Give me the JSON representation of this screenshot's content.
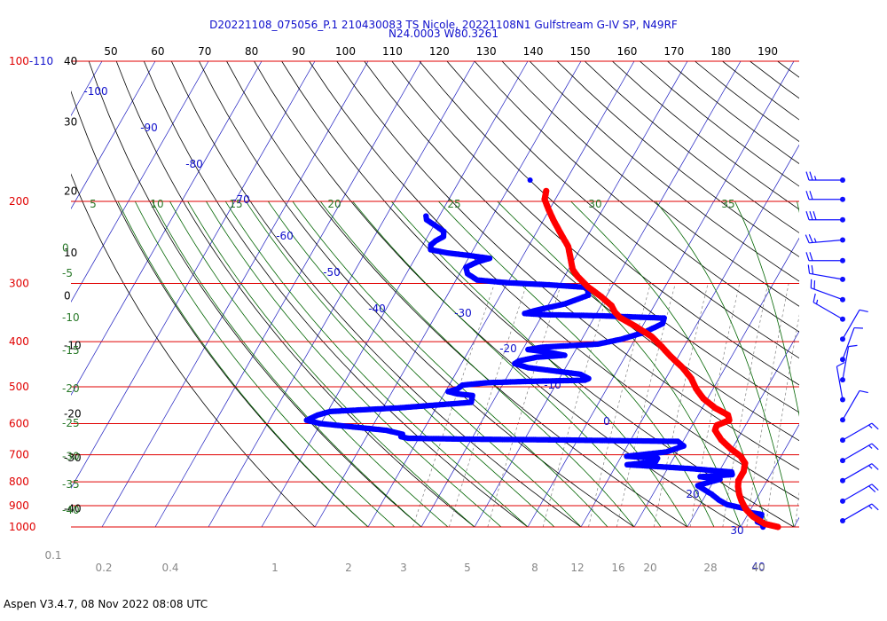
{
  "header": {
    "title_line1": "D20221108_075056_P.1 210430083 TS Nicole, 20221108N1 Gulfstream G-IV SP, N49RF",
    "title_line2": "N24.0003 W80.3261"
  },
  "footer": {
    "text": "Aspen V3.4.7, 08 Nov 2022  08:08 UTC"
  },
  "colors": {
    "pressure_lines": "#e00000",
    "isotherms": "#2020c0",
    "dry_adiabats": "#000000",
    "moist_adiabats": "#006400",
    "mixing_ratio": "#808080",
    "temperature": "#ff0000",
    "dewpoint": "#0000ff",
    "wind": "#1010ff"
  },
  "chart_data": {
    "type": "scatter",
    "subtype": "skew-T log-P sounding",
    "pressure_levels": [
      {
        "value": 100,
        "label": "100-110"
      },
      {
        "value": 200,
        "label": "200"
      },
      {
        "value": 300,
        "label": "300"
      },
      {
        "value": 400,
        "label": "400"
      },
      {
        "value": 500,
        "label": "500"
      },
      {
        "value": 600,
        "label": "600"
      },
      {
        "value": 700,
        "label": "700"
      },
      {
        "value": 800,
        "label": "800"
      },
      {
        "value": 900,
        "label": "900"
      },
      {
        "value": 1000,
        "label": "1000"
      }
    ],
    "top_axis_labels": [
      "50",
      "60",
      "70",
      "80",
      "90",
      "100",
      "110",
      "120",
      "130",
      "140",
      "150",
      "160",
      "170",
      "180",
      "190"
    ],
    "left_height_labels": [
      {
        "label": "40",
        "pressure": 100
      },
      {
        "label": "30",
        "pressure": 135
      },
      {
        "label": "20",
        "pressure": 190
      },
      {
        "label": "10",
        "pressure": 258
      },
      {
        "label": "0",
        "pressure": 319
      },
      {
        "label": "-10",
        "pressure": 408
      },
      {
        "label": "-20",
        "pressure": 572
      },
      {
        "label": "-30",
        "pressure": 710
      },
      {
        "label": "-40",
        "pressure": 915
      }
    ],
    "green_labels": [
      {
        "label": "0",
        "pressure": 252
      },
      {
        "label": "-5",
        "pressure": 285
      },
      {
        "label": "-10",
        "pressure": 355
      },
      {
        "label": "-15",
        "pressure": 418
      },
      {
        "label": "-20",
        "pressure": 505
      },
      {
        "label": "-25",
        "pressure": 598
      },
      {
        "label": "-30",
        "pressure": 705
      },
      {
        "label": "-35",
        "pressure": 810
      },
      {
        "label": "-40",
        "pressure": 920
      }
    ],
    "moist_top_labels": [
      "5",
      "10",
      "15",
      "20",
      "25",
      "30",
      "35"
    ],
    "isotherm_labels": [
      "-100",
      "-90",
      "-80",
      "-70",
      "-60",
      "-50",
      "-40",
      "-30",
      "-20",
      "-10",
      "0",
      "10",
      "20",
      "30",
      "40"
    ],
    "mixing_ratio_labels": [
      "0.1",
      "0.2",
      "0.4",
      "1",
      "2",
      "3",
      "5",
      "8",
      "12",
      "16",
      "20",
      "28",
      "40"
    ],
    "temperature": [
      {
        "p": 1000,
        "t": 27.0
      },
      {
        "p": 985,
        "t": 24.2
      },
      {
        "p": 950,
        "t": 21.2
      },
      {
        "p": 915,
        "t": 19.0
      },
      {
        "p": 880,
        "t": 17.4
      },
      {
        "p": 850,
        "t": 16.2
      },
      {
        "p": 820,
        "t": 15.2
      },
      {
        "p": 795,
        "t": 14.6
      },
      {
        "p": 760,
        "t": 14.6
      },
      {
        "p": 730,
        "t": 14.0
      },
      {
        "p": 705,
        "t": 12.4
      },
      {
        "p": 680,
        "t": 9.8
      },
      {
        "p": 650,
        "t": 7.0
      },
      {
        "p": 620,
        "t": 4.8
      },
      {
        "p": 605,
        "t": 4.6
      },
      {
        "p": 590,
        "t": 6.4
      },
      {
        "p": 575,
        "t": 5.6
      },
      {
        "p": 555,
        "t": 2.4
      },
      {
        "p": 530,
        "t": -0.8
      },
      {
        "p": 505,
        "t": -3.2
      },
      {
        "p": 480,
        "t": -5.2
      },
      {
        "p": 455,
        "t": -8.0
      },
      {
        "p": 430,
        "t": -11.5
      },
      {
        "p": 410,
        "t": -14.2
      },
      {
        "p": 390,
        "t": -17.2
      },
      {
        "p": 370,
        "t": -21.5
      },
      {
        "p": 355,
        "t": -25.2
      },
      {
        "p": 345,
        "t": -26.8
      },
      {
        "p": 335,
        "t": -28.0
      },
      {
        "p": 320,
        "t": -31.0
      },
      {
        "p": 305,
        "t": -34.5
      },
      {
        "p": 290,
        "t": -37.5
      },
      {
        "p": 280,
        "t": -39.2
      },
      {
        "p": 265,
        "t": -40.8
      },
      {
        "p": 250,
        "t": -42.5
      },
      {
        "p": 235,
        "t": -45.2
      },
      {
        "p": 220,
        "t": -48.0
      },
      {
        "p": 208,
        "t": -50.2
      },
      {
        "p": 198,
        "t": -52.0
      },
      {
        "p": 190,
        "t": -52.6
      }
    ],
    "dewpoint": [
      {
        "p": 1000,
        "t": 24.2
      },
      {
        "p": 985,
        "t": 23.8
      },
      {
        "p": 975,
        "t": 22.6
      },
      {
        "p": 960,
        "t": 22.8
      },
      {
        "p": 940,
        "t": 22.6
      },
      {
        "p": 930,
        "t": 20.0
      },
      {
        "p": 915,
        "t": 19.2
      },
      {
        "p": 895,
        "t": 15.0
      },
      {
        "p": 875,
        "t": 13.0
      },
      {
        "p": 850,
        "t": 11.0
      },
      {
        "p": 830,
        "t": 9.0
      },
      {
        "p": 815,
        "t": 7.5
      },
      {
        "p": 800,
        "t": 9.5
      },
      {
        "p": 790,
        "t": 11.0
      },
      {
        "p": 780,
        "t": 7.0
      },
      {
        "p": 772,
        "t": 12.8
      },
      {
        "p": 762,
        "t": 12.4
      },
      {
        "p": 750,
        "t": 4.8
      },
      {
        "p": 742,
        "t": -2.0
      },
      {
        "p": 735,
        "t": -8.0
      },
      {
        "p": 725,
        "t": -3.0
      },
      {
        "p": 712,
        "t": -3.0
      },
      {
        "p": 705,
        "t": -9.0
      },
      {
        "p": 690,
        "t": -2.0
      },
      {
        "p": 670,
        "t": 0.6
      },
      {
        "p": 655,
        "t": -1.0
      },
      {
        "p": 650,
        "t": -25.0
      },
      {
        "p": 648,
        "t": -40.0
      },
      {
        "p": 645,
        "t": -52.0
      },
      {
        "p": 640,
        "t": -53.5
      },
      {
        "p": 632,
        "t": -53.5
      },
      {
        "p": 620,
        "t": -57.0
      },
      {
        "p": 600,
        "t": -70.0
      },
      {
        "p": 590,
        "t": -73.0
      },
      {
        "p": 575,
        "t": -71.5
      },
      {
        "p": 565,
        "t": -69.5
      },
      {
        "p": 555,
        "t": -57.0
      },
      {
        "p": 540,
        "t": -44.0
      },
      {
        "p": 522,
        "t": -44.5
      },
      {
        "p": 518,
        "t": -47.5
      },
      {
        "p": 512,
        "t": -49.5
      },
      {
        "p": 505,
        "t": -48.0
      },
      {
        "p": 496,
        "t": -47.5
      },
      {
        "p": 490,
        "t": -43.0
      },
      {
        "p": 487,
        "t": -36.0
      },
      {
        "p": 484,
        "t": -25.0
      },
      {
        "p": 480,
        "t": -24.5
      },
      {
        "p": 470,
        "t": -26.5
      },
      {
        "p": 462,
        "t": -32.0
      },
      {
        "p": 455,
        "t": -37.0
      },
      {
        "p": 446,
        "t": -40.0
      },
      {
        "p": 440,
        "t": -39.5
      },
      {
        "p": 432,
        "t": -36.5
      },
      {
        "p": 428,
        "t": -31.5
      },
      {
        "p": 422,
        "t": -34.5
      },
      {
        "p": 416,
        "t": -39.0
      },
      {
        "p": 411,
        "t": -36.5
      },
      {
        "p": 405,
        "t": -26.5
      },
      {
        "p": 395,
        "t": -22.5
      },
      {
        "p": 382,
        "t": -19.0
      },
      {
        "p": 366,
        "t": -16.5
      },
      {
        "p": 356,
        "t": -16.8
      },
      {
        "p": 352,
        "t": -29.0
      },
      {
        "p": 350,
        "t": -40.0
      },
      {
        "p": 348,
        "t": -43.5
      },
      {
        "p": 342,
        "t": -41.5
      },
      {
        "p": 332,
        "t": -37.0
      },
      {
        "p": 318,
        "t": -33.5
      },
      {
        "p": 306,
        "t": -34.5
      },
      {
        "p": 302,
        "t": -42.0
      },
      {
        "p": 299,
        "t": -50.0
      },
      {
        "p": 295,
        "t": -56.0
      },
      {
        "p": 286,
        "t": -58.5
      },
      {
        "p": 277,
        "t": -59.5
      },
      {
        "p": 270,
        "t": -58.0
      },
      {
        "p": 265,
        "t": -56.0
      },
      {
        "p": 261,
        "t": -60.5
      },
      {
        "p": 258,
        "t": -64.5
      },
      {
        "p": 254,
        "t": -68.0
      },
      {
        "p": 248,
        "t": -68.5
      },
      {
        "p": 243,
        "t": -68.0
      },
      {
        "p": 238,
        "t": -67.0
      },
      {
        "p": 232,
        "t": -67.5
      },
      {
        "p": 226,
        "t": -69.5
      },
      {
        "p": 219,
        "t": -72.0
      },
      {
        "p": 215,
        "t": -72.5
      }
    ],
    "dewpoint_isolated": [
      {
        "p": 180,
        "t": -56.8
      }
    ],
    "wind_barbs": [
      {
        "p": 180,
        "dir": 270,
        "kt": 25
      },
      {
        "p": 198,
        "dir": 270,
        "kt": 20
      },
      {
        "p": 219,
        "dir": 270,
        "kt": 30
      },
      {
        "p": 242,
        "dir": 265,
        "kt": 25
      },
      {
        "p": 268,
        "dir": 270,
        "kt": 20
      },
      {
        "p": 294,
        "dir": 280,
        "kt": 20
      },
      {
        "p": 325,
        "dir": 290,
        "kt": 20
      },
      {
        "p": 358,
        "dir": 300,
        "kt": 15
      },
      {
        "p": 395,
        "dir": 30,
        "kt": 10
      },
      {
        "p": 437,
        "dir": 20,
        "kt": 10
      },
      {
        "p": 483,
        "dir": 10,
        "kt": 10
      },
      {
        "p": 533,
        "dir": 350,
        "kt": 10
      },
      {
        "p": 589,
        "dir": 30,
        "kt": 10
      },
      {
        "p": 651,
        "dir": 60,
        "kt": 15
      },
      {
        "p": 720,
        "dir": 60,
        "kt": 15
      },
      {
        "p": 795,
        "dir": 60,
        "kt": 15
      },
      {
        "p": 880,
        "dir": 60,
        "kt": 20
      },
      {
        "p": 970,
        "dir": 60,
        "kt": 15
      }
    ],
    "pressure_range": [
      100,
      1000
    ],
    "temperature_axis": "skewed",
    "grid": true
  }
}
